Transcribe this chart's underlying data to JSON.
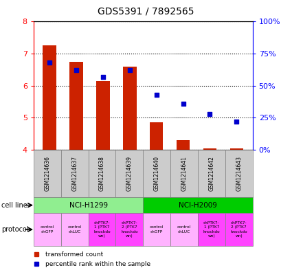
{
  "title": "GDS5391 / 7892565",
  "samples": [
    "GSM1214636",
    "GSM1214637",
    "GSM1214638",
    "GSM1214639",
    "GSM1214640",
    "GSM1214641",
    "GSM1214642",
    "GSM1214643"
  ],
  "bar_values": [
    7.25,
    6.75,
    6.15,
    6.6,
    4.85,
    4.3,
    4.05,
    4.05
  ],
  "bar_base": 4.0,
  "percentile_values": [
    68,
    62,
    57,
    62,
    43,
    36,
    28,
    22
  ],
  "cell_lines": [
    {
      "label": "NCI-H1299",
      "cols": [
        0,
        1,
        2,
        3
      ],
      "color": "#90EE90"
    },
    {
      "label": "NCI-H2009",
      "cols": [
        4,
        5,
        6,
        7
      ],
      "color": "#00CC00"
    }
  ],
  "protocols": [
    {
      "label": "control\nshGFP",
      "col": 0,
      "color": "#FFB3FF"
    },
    {
      "label": "control\nshLUC",
      "col": 1,
      "color": "#FFB3FF"
    },
    {
      "label": "shPTK7-\n1 (PTK7\nknockdo\nwn)",
      "col": 2,
      "color": "#FF44FF"
    },
    {
      "label": "shPTK7-\n2 (PTK7\nknockdo\nwn)",
      "col": 3,
      "color": "#FF44FF"
    },
    {
      "label": "control\nshGFP",
      "col": 4,
      "color": "#FFB3FF"
    },
    {
      "label": "control\nshLUC",
      "col": 5,
      "color": "#FFB3FF"
    },
    {
      "label": "shPTK7-\n1 (PTK7\nknockdo\nwn)",
      "col": 6,
      "color": "#FF44FF"
    },
    {
      "label": "shPTK7-\n2 (PTK7\nknockdo\nwn)",
      "col": 7,
      "color": "#FF44FF"
    }
  ],
  "bar_color": "#CC2200",
  "scatter_color": "#0000CC",
  "ylim_left": [
    4.0,
    8.0
  ],
  "ylim_right": [
    0,
    100
  ],
  "yticks_left": [
    4,
    5,
    6,
    7,
    8
  ],
  "yticks_right": [
    0,
    25,
    50,
    75,
    100
  ],
  "yticklabels_right": [
    "0%",
    "25%",
    "50%",
    "75%",
    "100%"
  ],
  "sample_gray": "#CCCCCC",
  "bar_width": 0.5
}
